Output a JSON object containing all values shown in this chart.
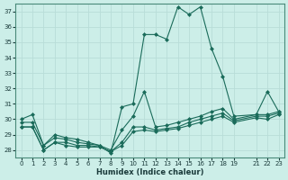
{
  "xlabel": "Humidex (Indice chaleur)",
  "bg_color": "#cceee8",
  "grid_color": "#b8ddd8",
  "line_color": "#1a6b5a",
  "series": [
    {
      "x": [
        0,
        1,
        2,
        3,
        4,
        5,
        6,
        7,
        8,
        9,
        10,
        11,
        12,
        13,
        14,
        15,
        16,
        17,
        18,
        19,
        21,
        22,
        23
      ],
      "y": [
        30.0,
        30.3,
        28.3,
        29.0,
        28.8,
        28.7,
        28.5,
        28.3,
        27.8,
        30.8,
        31.0,
        35.5,
        35.5,
        35.2,
        37.3,
        36.8,
        37.3,
        34.6,
        32.8,
        30.2,
        30.3,
        31.8,
        30.5
      ]
    },
    {
      "x": [
        0,
        1,
        2,
        3,
        4,
        5,
        6,
        7,
        8,
        9,
        10,
        11,
        12,
        13,
        14,
        15,
        16,
        17,
        18,
        19,
        21,
        22,
        23
      ],
      "y": [
        29.8,
        29.8,
        28.3,
        28.8,
        28.7,
        28.5,
        28.4,
        28.3,
        28.0,
        29.3,
        30.2,
        31.8,
        29.5,
        29.6,
        29.8,
        30.0,
        30.2,
        30.5,
        30.7,
        30.0,
        30.3,
        30.3,
        30.5
      ]
    },
    {
      "x": [
        0,
        1,
        2,
        3,
        4,
        5,
        6,
        7,
        8,
        9,
        10,
        11,
        12,
        13,
        14,
        15,
        16,
        17,
        18,
        19,
        21,
        22,
        23
      ],
      "y": [
        29.5,
        29.5,
        28.0,
        28.5,
        28.5,
        28.3,
        28.3,
        28.2,
        27.9,
        28.5,
        29.5,
        29.5,
        29.3,
        29.4,
        29.5,
        29.8,
        30.0,
        30.2,
        30.4,
        29.9,
        30.2,
        30.2,
        30.4
      ]
    },
    {
      "x": [
        0,
        1,
        2,
        3,
        4,
        5,
        6,
        7,
        8,
        9,
        10,
        11,
        12,
        13,
        14,
        15,
        16,
        17,
        18,
        19,
        21,
        22,
        23
      ],
      "y": [
        29.5,
        29.5,
        28.0,
        28.5,
        28.3,
        28.2,
        28.2,
        28.2,
        27.9,
        28.3,
        29.2,
        29.3,
        29.2,
        29.3,
        29.4,
        29.6,
        29.8,
        30.0,
        30.2,
        29.8,
        30.1,
        30.0,
        30.3
      ]
    }
  ],
  "yticks": [
    28,
    29,
    30,
    31,
    32,
    33,
    34,
    35,
    36,
    37
  ],
  "xticks": [
    0,
    1,
    2,
    3,
    4,
    5,
    6,
    7,
    8,
    9,
    10,
    11,
    12,
    13,
    14,
    15,
    16,
    17,
    18,
    19,
    21,
    22,
    23
  ],
  "xlim": [
    -0.5,
    23.5
  ],
  "ylim": [
    27.5,
    37.5
  ],
  "figsize": [
    3.2,
    2.0
  ],
  "dpi": 100
}
